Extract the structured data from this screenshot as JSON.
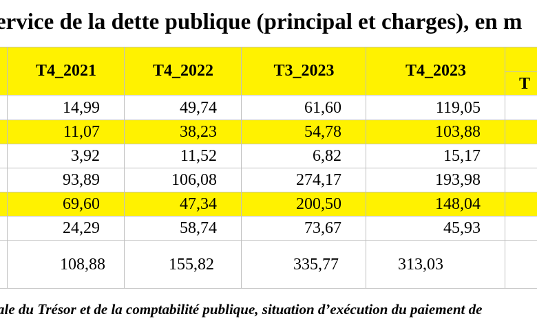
{
  "title": "ervice de la dette publique (principal et charges), en m",
  "table": {
    "headers": [
      "T4_2021",
      "T4_2022",
      "T3_2023",
      "T4_2023"
    ],
    "partial_header": "T",
    "rows": [
      {
        "highlight": false,
        "values": [
          "14,99",
          "49,74",
          "61,60",
          "119,05"
        ]
      },
      {
        "highlight": true,
        "values": [
          "11,07",
          "38,23",
          "54,78",
          "103,88"
        ]
      },
      {
        "highlight": false,
        "values": [
          "3,92",
          "11,52",
          "6,82",
          "15,17"
        ]
      },
      {
        "highlight": false,
        "values": [
          "93,89",
          "106,08",
          "274,17",
          "193,98"
        ]
      },
      {
        "highlight": true,
        "values": [
          "69,60",
          "47,34",
          "200,50",
          "148,04"
        ]
      },
      {
        "highlight": false,
        "values": [
          "24,29",
          "58,74",
          "73,67",
          "45,93"
        ]
      },
      {
        "highlight": false,
        "values": [
          "108,88",
          "155,82",
          "335,77",
          "313,03"
        ]
      }
    ]
  },
  "footer": "ale du Trésor et de la comptabilité publique, situation d’exécution du paiement de",
  "colors": {
    "highlight": "#fff200",
    "grid": "#bfbfbf"
  }
}
